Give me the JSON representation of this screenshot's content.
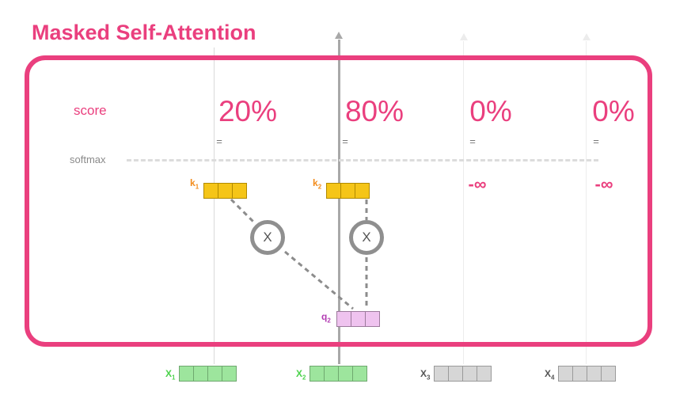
{
  "title": "Masked Self-Attention",
  "row_labels": {
    "score": "score",
    "softmax": "softmax"
  },
  "scores": [
    "20%",
    "80%",
    "0%",
    "0%"
  ],
  "equals": [
    "=",
    "=",
    "=",
    "="
  ],
  "masked": [
    "-∞",
    "-∞"
  ],
  "keys": [
    {
      "name": "k",
      "sub": "1"
    },
    {
      "name": "k",
      "sub": "2"
    }
  ],
  "query": {
    "name": "q",
    "sub": "2"
  },
  "multiply_symbol": "X",
  "inputs": [
    {
      "name": "X",
      "sub": "1"
    },
    {
      "name": "X",
      "sub": "2"
    },
    {
      "name": "X",
      "sub": "3"
    },
    {
      "name": "X",
      "sub": "4"
    }
  ],
  "colors": {
    "accent": "#ea3f7e",
    "key": "#f5c518",
    "query": "#efc3ef",
    "input_active": "#9de59d",
    "input_masked": "#d6d6d6"
  }
}
